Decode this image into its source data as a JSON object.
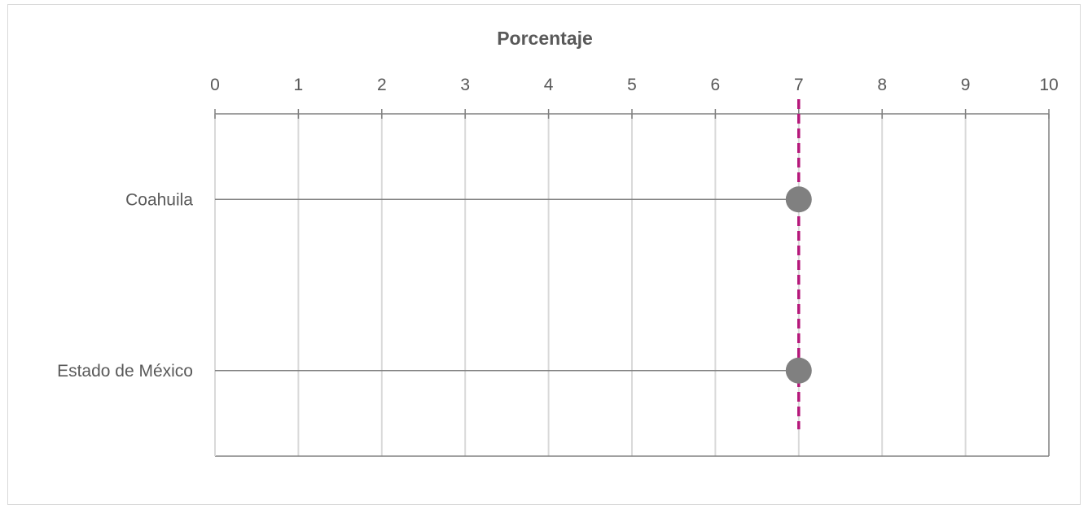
{
  "chart_data": {
    "type": "scatter",
    "title": "Porcentaje",
    "xlabel": "",
    "ylabel": "",
    "xlim": [
      0,
      10
    ],
    "x_ticks": [
      "0",
      "1",
      "2",
      "3",
      "4",
      "5",
      "6",
      "7",
      "8",
      "9",
      "10"
    ],
    "x_axis_position": "top",
    "grid": true,
    "categories": [
      "Coahuila",
      "Estado de México"
    ],
    "values": [
      7,
      7
    ],
    "reference_line": {
      "value": 7,
      "style": "dashed"
    },
    "colors": {
      "marker": "#808080",
      "leader_line": "#808080",
      "reference_line": "#b5177a",
      "grid": "#d9d9d9",
      "axis": "#808080",
      "text": "#595959"
    }
  }
}
